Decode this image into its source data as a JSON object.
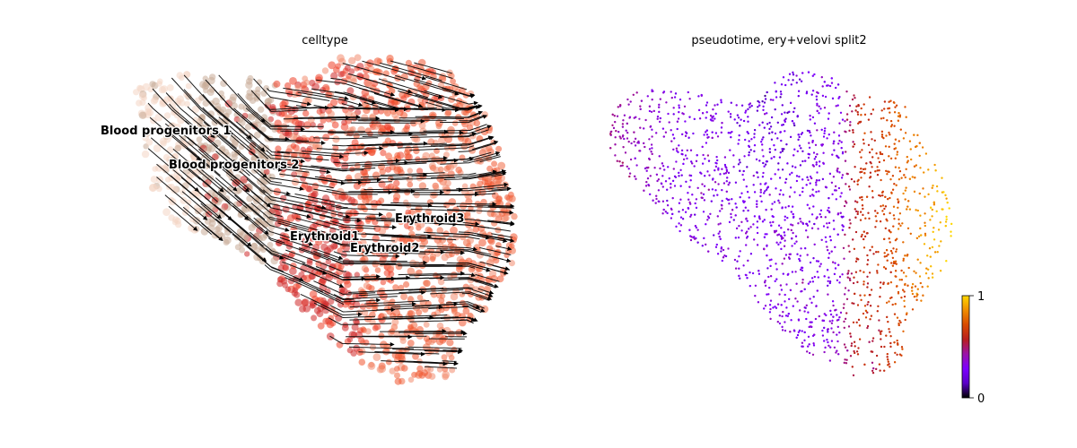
{
  "panels": {
    "left": {
      "title": "celltype"
    },
    "right": {
      "title": "pseudotime, ery+velovi split2"
    }
  },
  "colorbar": {
    "min_label": "0",
    "max_label": "1"
  },
  "chart_data": [
    {
      "type": "scatter",
      "title": "celltype",
      "xlabel": "",
      "ylabel": "",
      "grid": false,
      "overlay": "velocity streamlines with arrows",
      "cluster_labels": [
        "Blood progenitors 1",
        "Blood progenitors 2",
        "Erythroid1",
        "Erythroid2",
        "Erythroid3"
      ],
      "series": [
        {
          "name": "Blood progenitors 1",
          "color": "#f4d6c4"
        },
        {
          "name": "Blood progenitors 2",
          "color": "#c8ab98"
        },
        {
          "name": "Erythroid1",
          "color": "#cf2a2a"
        },
        {
          "name": "Erythroid2",
          "color": "#ee3f28"
        },
        {
          "name": "Erythroid3",
          "color": "#f0552f"
        }
      ]
    },
    {
      "type": "scatter",
      "title": "pseudotime, ery+velovi split2",
      "xlabel": "",
      "ylabel": "",
      "grid": false,
      "colormap": "gnuplot",
      "color_range": [
        0,
        1
      ],
      "colorbar_ticks": [
        "0",
        "1"
      ],
      "colormap_stops": [
        "#000000",
        "#5a00c8",
        "#7d00ff",
        "#9b13a8",
        "#b81e1e",
        "#d94a00",
        "#f08d00",
        "#ffd800"
      ]
    }
  ]
}
